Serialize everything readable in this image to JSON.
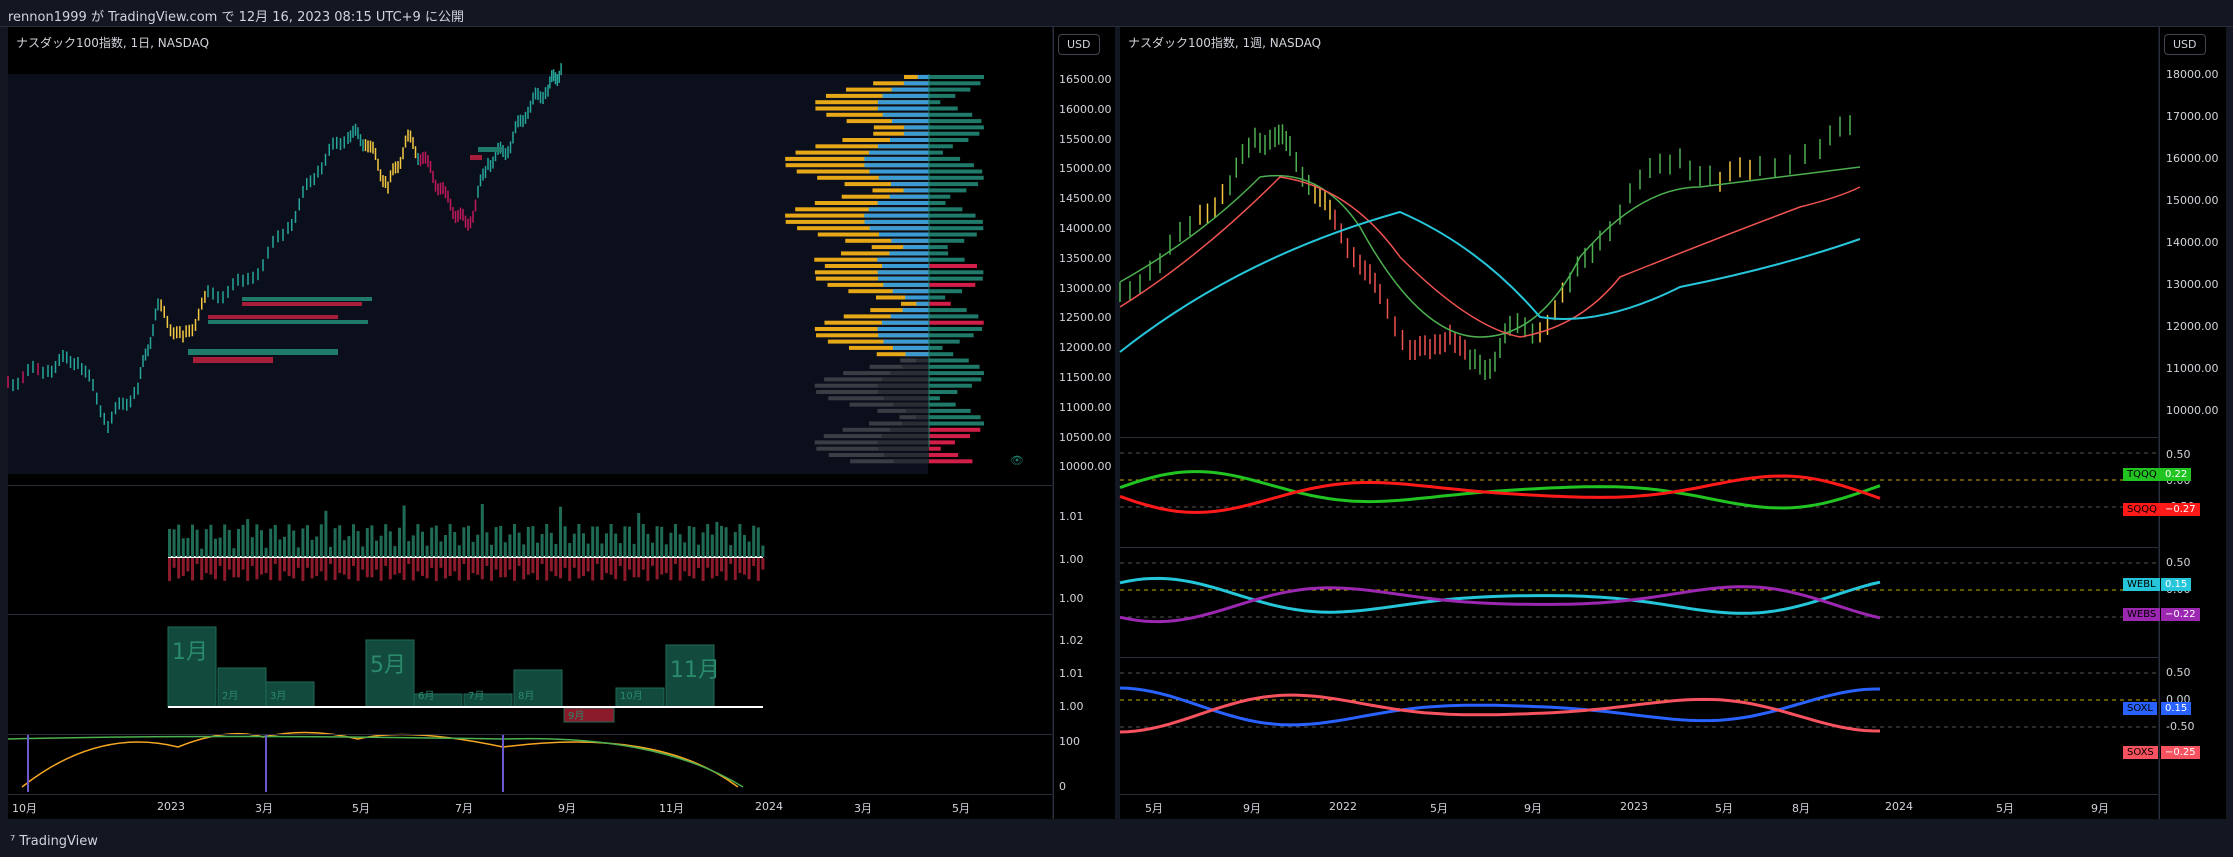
{
  "header": {
    "published": "rennon1999 が TradingView.com で 12月 16, 2023 08:15 UTC+9 に公開"
  },
  "left": {
    "title": "ナスダック100指数, 1日, NASDAQ",
    "currency": "USD",
    "price_ticks": [
      "16500.00",
      "16000.00",
      "15500.00",
      "15000.00",
      "14500.00",
      "14000.00",
      "13500.00",
      "13000.00",
      "12500.00",
      "12000.00",
      "11500.00",
      "11000.00",
      "10500.00",
      "10000.00"
    ],
    "pane2_ticks": [
      "1.01",
      "1.00",
      "1.00"
    ],
    "pane3_ticks": [
      "1.02",
      "1.01",
      "1.00"
    ],
    "pane4_ticks": [
      "100",
      "0"
    ],
    "months": [
      "1月",
      "2月",
      "3月",
      "5月",
      "6月",
      "7月",
      "8月",
      "9月",
      "10月",
      "11月"
    ],
    "x_labels": [
      "10月",
      "2023",
      "3月",
      "5月",
      "7月",
      "9月",
      "11月",
      "2024",
      "3月",
      "5月"
    ]
  },
  "right": {
    "title": "ナスダック100指数, 1週, NASDAQ",
    "currency": "USD",
    "price_ticks": [
      "18000.00",
      "17000.00",
      "16000.00",
      "15000.00",
      "14000.00",
      "13000.00",
      "12000.00",
      "11000.00",
      "10000.00"
    ],
    "osc_ticks": [
      "0.50",
      "0.00",
      "-0.50"
    ],
    "x_labels": [
      "5月",
      "9月",
      "2022",
      "5月",
      "9月",
      "2023",
      "5月",
      "8月",
      "2024",
      "5月",
      "9月"
    ],
    "legend": [
      {
        "name": "TQQQ",
        "value": "0.22",
        "color": "#22c422"
      },
      {
        "name": "SQQQ",
        "value": "−0.27",
        "color": "#ff1a1a"
      },
      {
        "name": "WEBL",
        "value": "0.15",
        "color": "#26c6da"
      },
      {
        "name": "WEBS",
        "value": "−0.22",
        "color": "#9c27b0"
      },
      {
        "name": "SOXL",
        "value": "0.15",
        "color": "#2962ff"
      },
      {
        "name": "SOXS",
        "value": "−0.25",
        "color": "#f7525f"
      }
    ]
  },
  "footer": {
    "brand": "TradingView"
  }
}
